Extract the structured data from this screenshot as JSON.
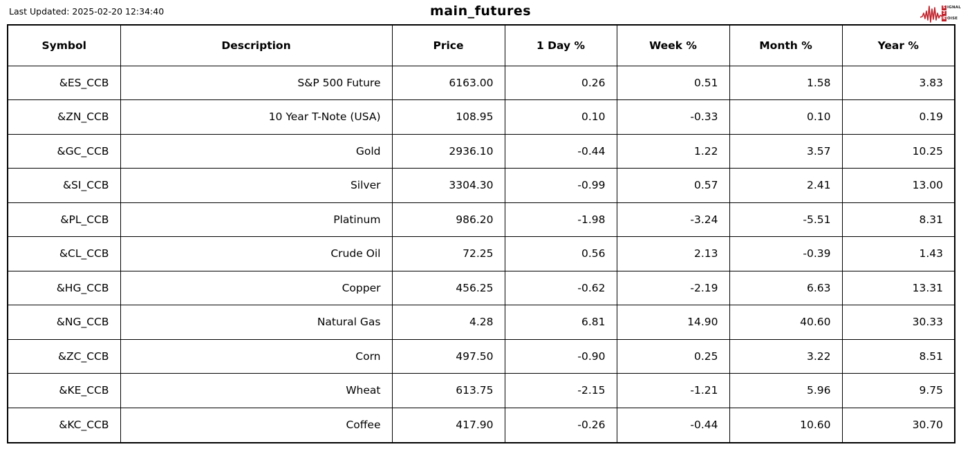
{
  "header": {
    "last_updated": "Last Updated: 2025-02-20 12:34:40",
    "title": "main_futures",
    "logo": {
      "waveform_icon": "signal-waveform",
      "line1_initial": "S",
      "line1_rest": "IGNAL",
      "line2_initial": "2",
      "line2_rest": "",
      "line3_initial": "N",
      "line3_rest": "OISE"
    }
  },
  "colors": {
    "negative_strong": "#8B0000",
    "negative_mild": "#F08080",
    "positive_strong": "#006400",
    "positive_mild": "#90EE90",
    "neutral": "#FFFFFF",
    "logo_red": "#C0232C",
    "border": "#000000"
  },
  "chart_data": {
    "type": "table",
    "title": "main_futures",
    "columns": [
      "Symbol",
      "Description",
      "Price",
      "1 Day %",
      "Week %",
      "Month %",
      "Year %"
    ],
    "rows": [
      {
        "symbol": "&ES_CCB",
        "description": "S&P 500 Future",
        "price": "6163.00",
        "day": "0.26",
        "week": "0.51",
        "month": "1.58",
        "year": "3.83",
        "cell_colors": {
          "day": "flat",
          "week": "flat",
          "month": "flat",
          "year": "flat"
        }
      },
      {
        "symbol": "&ZN_CCB",
        "description": "10 Year T-Note (USA)",
        "price": "108.95",
        "day": "0.10",
        "week": "-0.33",
        "month": "0.10",
        "year": "0.19",
        "cell_colors": {
          "day": "flat",
          "week": "flat",
          "month": "flat",
          "year": "flat"
        }
      },
      {
        "symbol": "&GC_CCB",
        "description": "Gold",
        "price": "2936.10",
        "day": "-0.44",
        "week": "1.22",
        "month": "3.57",
        "year": "10.25",
        "cell_colors": {
          "day": "neg-mild",
          "week": "pos-mild",
          "month": "pos-mild",
          "year": "pos-mild"
        }
      },
      {
        "symbol": "&SI_CCB",
        "description": "Silver",
        "price": "3304.30",
        "day": "-0.99",
        "week": "0.57",
        "month": "2.41",
        "year": "13.00",
        "cell_colors": {
          "day": "neg-mild",
          "week": "flat",
          "month": "flat",
          "year": "pos-mild"
        }
      },
      {
        "symbol": "&PL_CCB",
        "description": "Platinum",
        "price": "986.20",
        "day": "-1.98",
        "week": "-3.24",
        "month": "-5.51",
        "year": "8.31",
        "cell_colors": {
          "day": "neg-strong",
          "week": "neg-strong",
          "month": "neg-mild",
          "year": "pos-mild"
        }
      },
      {
        "symbol": "&CL_CCB",
        "description": "Crude Oil",
        "price": "72.25",
        "day": "0.56",
        "week": "2.13",
        "month": "-0.39",
        "year": "1.43",
        "cell_colors": {
          "day": "flat",
          "week": "flat",
          "month": "flat",
          "year": "flat"
        }
      },
      {
        "symbol": "&HG_CCB",
        "description": "Copper",
        "price": "456.25",
        "day": "-0.62",
        "week": "-2.19",
        "month": "6.63",
        "year": "13.31",
        "cell_colors": {
          "day": "neg-mild",
          "week": "neg-mild",
          "month": "pos-strong",
          "year": "pos-mild"
        }
      },
      {
        "symbol": "&NG_CCB",
        "description": "Natural Gas",
        "price": "4.28",
        "day": "6.81",
        "week": "14.90",
        "month": "40.60",
        "year": "30.33",
        "cell_colors": {
          "day": "pos-strong",
          "week": "pos-strong",
          "month": "pos-strong",
          "year": "pos-strong"
        }
      },
      {
        "symbol": "&ZC_CCB",
        "description": "Corn",
        "price": "497.50",
        "day": "-0.90",
        "week": "0.25",
        "month": "3.22",
        "year": "8.51",
        "cell_colors": {
          "day": "flat",
          "week": "flat",
          "month": "flat",
          "year": "flat"
        }
      },
      {
        "symbol": "&KE_CCB",
        "description": "Wheat",
        "price": "613.75",
        "day": "-2.15",
        "week": "-1.21",
        "month": "5.96",
        "year": "9.75",
        "cell_colors": {
          "day": "neg-strong",
          "week": "flat",
          "month": "pos-strong",
          "year": "pos-mild"
        }
      },
      {
        "symbol": "&KC_CCB",
        "description": "Coffee",
        "price": "417.90",
        "day": "-0.26",
        "week": "-0.44",
        "month": "10.60",
        "year": "30.70",
        "cell_colors": {
          "day": "flat",
          "week": "flat",
          "month": "pos-strong",
          "year": "pos-mild"
        }
      }
    ]
  }
}
